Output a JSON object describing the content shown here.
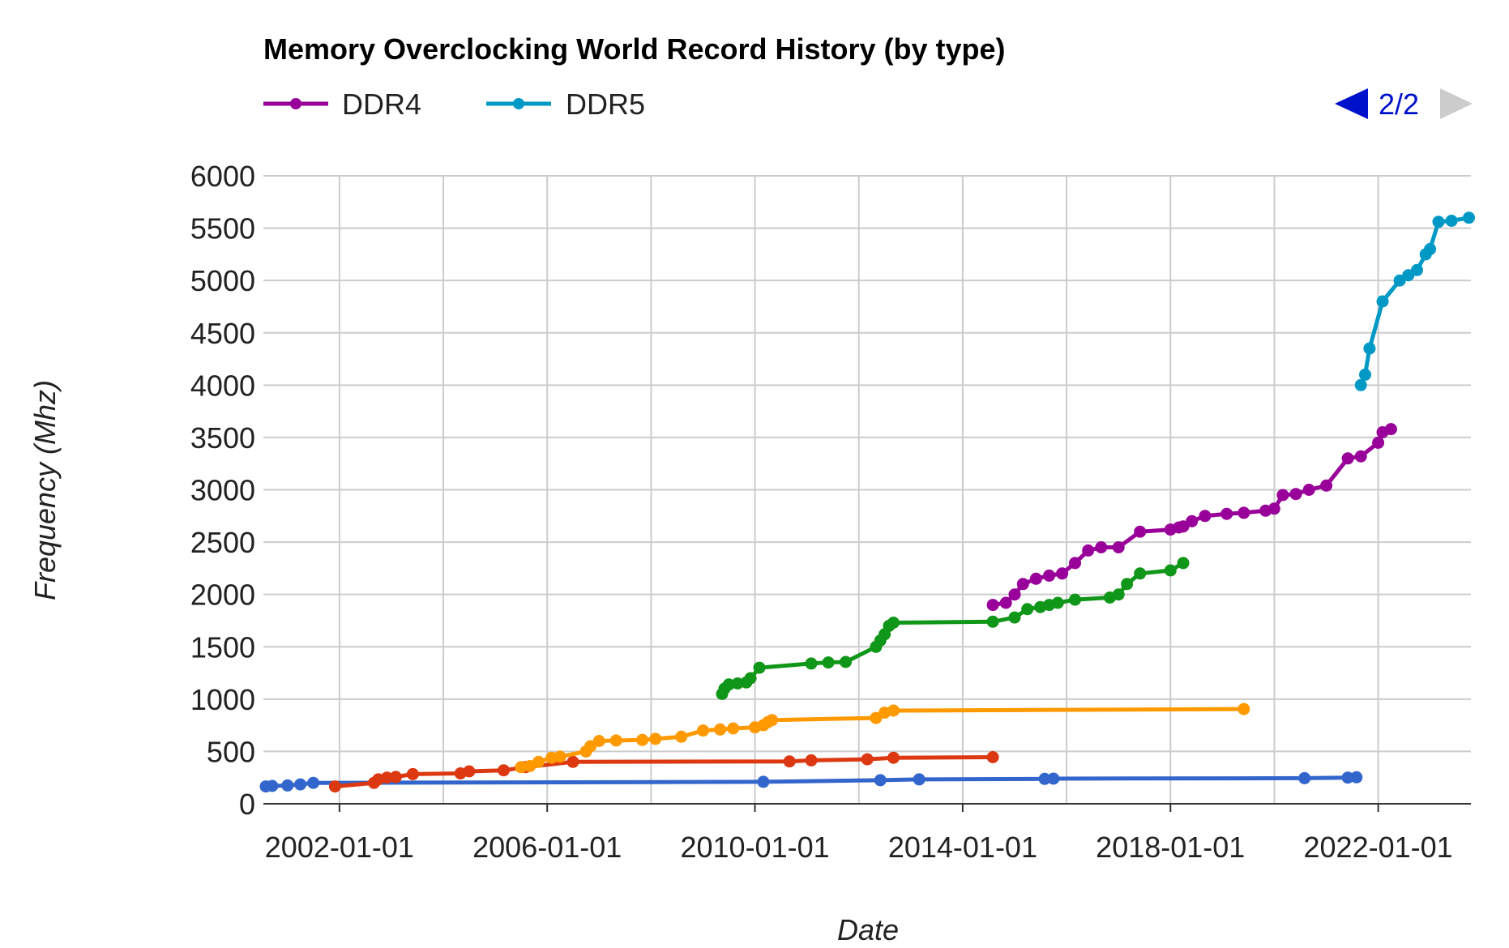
{
  "chart_data": {
    "type": "line",
    "title": "Memory Overclocking World Record History (by type)",
    "xlabel": "Date",
    "ylabel": "Frequency (Mhz)",
    "ylim": [
      0,
      6000
    ],
    "yticks": [
      "0",
      "500",
      "1000",
      "1500",
      "2000",
      "2500",
      "3000",
      "3500",
      "4000",
      "4500",
      "5000",
      "5500",
      "6000"
    ],
    "xlim": [
      "2000-07-15",
      "2023-10-15"
    ],
    "xticks": [
      "2002-01-01",
      "2006-01-01",
      "2010-01-01",
      "2014-01-01",
      "2018-01-01",
      "2022-01-01"
    ],
    "grid": true,
    "legend_position": "top-left",
    "pager": {
      "label": "2/2"
    },
    "legend_series": [
      {
        "name": "DDR4",
        "color": "#990099"
      },
      {
        "name": "DDR5",
        "color": "#0099c6"
      }
    ],
    "series": [
      {
        "color": "#3366cc",
        "points": [
          [
            "2000-08-01",
            166
          ],
          [
            "2000-09-15",
            170
          ],
          [
            "2001-01-01",
            175
          ],
          [
            "2001-04-01",
            185
          ],
          [
            "2001-07-01",
            200
          ],
          [
            "2010-03-01",
            210
          ],
          [
            "2012-06-01",
            225
          ],
          [
            "2013-03-01",
            233
          ],
          [
            "2015-08-01",
            238
          ],
          [
            "2015-10-01",
            240
          ],
          [
            "2020-08-01",
            245
          ],
          [
            "2021-06-01",
            250
          ],
          [
            "2021-08-01",
            253
          ]
        ]
      },
      {
        "color": "#dc3912",
        "points": [
          [
            "2001-12-01",
            166
          ],
          [
            "2002-09-01",
            200
          ],
          [
            "2002-10-01",
            233
          ],
          [
            "2002-12-01",
            250
          ],
          [
            "2003-02-01",
            256
          ],
          [
            "2003-06-01",
            283
          ],
          [
            "2004-05-01",
            290
          ],
          [
            "2004-07-01",
            310
          ],
          [
            "2005-03-01",
            320
          ],
          [
            "2005-08-01",
            350
          ],
          [
            "2006-07-01",
            400
          ],
          [
            "2010-09-01",
            405
          ],
          [
            "2011-02-01",
            415
          ],
          [
            "2012-03-01",
            425
          ],
          [
            "2012-09-01",
            440
          ],
          [
            "2014-08-01",
            445
          ]
        ]
      },
      {
        "color": "#ff9900",
        "points": [
          [
            "2005-07-01",
            350
          ],
          [
            "2005-09-01",
            360
          ],
          [
            "2005-11-01",
            400
          ],
          [
            "2006-02-01",
            440
          ],
          [
            "2006-04-01",
            450
          ],
          [
            "2006-10-01",
            500
          ],
          [
            "2006-11-01",
            550
          ],
          [
            "2007-01-01",
            600
          ],
          [
            "2007-05-01",
            605
          ],
          [
            "2007-11-01",
            610
          ],
          [
            "2008-02-01",
            620
          ],
          [
            "2008-08-01",
            640
          ],
          [
            "2009-01-01",
            700
          ],
          [
            "2009-05-01",
            710
          ],
          [
            "2009-08-01",
            720
          ],
          [
            "2010-01-01",
            730
          ],
          [
            "2010-03-01",
            750
          ],
          [
            "2010-04-01",
            780
          ],
          [
            "2010-05-01",
            800
          ],
          [
            "2012-05-01",
            820
          ],
          [
            "2012-07-01",
            870
          ],
          [
            "2012-09-01",
            890
          ],
          [
            "2019-06-01",
            905
          ]
        ]
      },
      {
        "color": "#109618",
        "points": [
          [
            "2009-05-15",
            1050
          ],
          [
            "2009-06-01",
            1100
          ],
          [
            "2009-07-01",
            1140
          ],
          [
            "2009-09-01",
            1150
          ],
          [
            "2009-11-01",
            1160
          ],
          [
            "2009-12-01",
            1200
          ],
          [
            "2010-02-01",
            1300
          ],
          [
            "2011-02-01",
            1340
          ],
          [
            "2011-06-01",
            1350
          ],
          [
            "2011-10-01",
            1355
          ],
          [
            "2012-05-01",
            1500
          ],
          [
            "2012-06-01",
            1560
          ],
          [
            "2012-07-01",
            1620
          ],
          [
            "2012-08-01",
            1700
          ],
          [
            "2012-09-01",
            1730
          ],
          [
            "2014-08-01",
            1740
          ],
          [
            "2015-01-01",
            1780
          ],
          [
            "2015-04-01",
            1860
          ],
          [
            "2015-07-01",
            1880
          ],
          [
            "2015-09-01",
            1900
          ],
          [
            "2015-11-01",
            1920
          ],
          [
            "2016-03-01",
            1950
          ],
          [
            "2016-11-01",
            1970
          ],
          [
            "2017-01-01",
            2000
          ],
          [
            "2017-03-01",
            2100
          ],
          [
            "2017-06-01",
            2200
          ],
          [
            "2018-01-01",
            2230
          ],
          [
            "2018-04-01",
            2300
          ]
        ]
      },
      {
        "name": "DDR4",
        "color": "#990099",
        "points": [
          [
            "2014-08-01",
            1900
          ],
          [
            "2014-11-01",
            1920
          ],
          [
            "2015-01-01",
            2000
          ],
          [
            "2015-03-01",
            2100
          ],
          [
            "2015-06-01",
            2150
          ],
          [
            "2015-09-01",
            2180
          ],
          [
            "2015-12-01",
            2200
          ],
          [
            "2016-03-01",
            2300
          ],
          [
            "2016-06-01",
            2420
          ],
          [
            "2016-09-01",
            2450
          ],
          [
            "2017-01-01",
            2450
          ],
          [
            "2017-06-01",
            2600
          ],
          [
            "2018-01-01",
            2620
          ],
          [
            "2018-03-01",
            2640
          ],
          [
            "2018-04-01",
            2650
          ],
          [
            "2018-06-01",
            2700
          ],
          [
            "2018-09-01",
            2750
          ],
          [
            "2019-02-01",
            2770
          ],
          [
            "2019-06-01",
            2780
          ],
          [
            "2019-11-01",
            2800
          ],
          [
            "2020-01-01",
            2820
          ],
          [
            "2020-03-01",
            2950
          ],
          [
            "2020-06-01",
            2960
          ],
          [
            "2020-09-01",
            3000
          ],
          [
            "2021-01-01",
            3040
          ],
          [
            "2021-06-01",
            3300
          ],
          [
            "2021-09-01",
            3320
          ],
          [
            "2022-01-01",
            3450
          ],
          [
            "2022-02-01",
            3550
          ],
          [
            "2022-04-01",
            3580
          ]
        ]
      },
      {
        "name": "DDR5",
        "color": "#0099c6",
        "points": [
          [
            "2021-09-01",
            4000
          ],
          [
            "2021-10-01",
            4100
          ],
          [
            "2021-11-01",
            4350
          ],
          [
            "2022-02-01",
            4800
          ],
          [
            "2022-06-01",
            5000
          ],
          [
            "2022-08-01",
            5050
          ],
          [
            "2022-10-01",
            5100
          ],
          [
            "2022-12-01",
            5250
          ],
          [
            "2023-01-01",
            5300
          ],
          [
            "2023-03-01",
            5560
          ],
          [
            "2023-06-01",
            5570
          ],
          [
            "2023-10-01",
            5600
          ]
        ]
      }
    ]
  }
}
